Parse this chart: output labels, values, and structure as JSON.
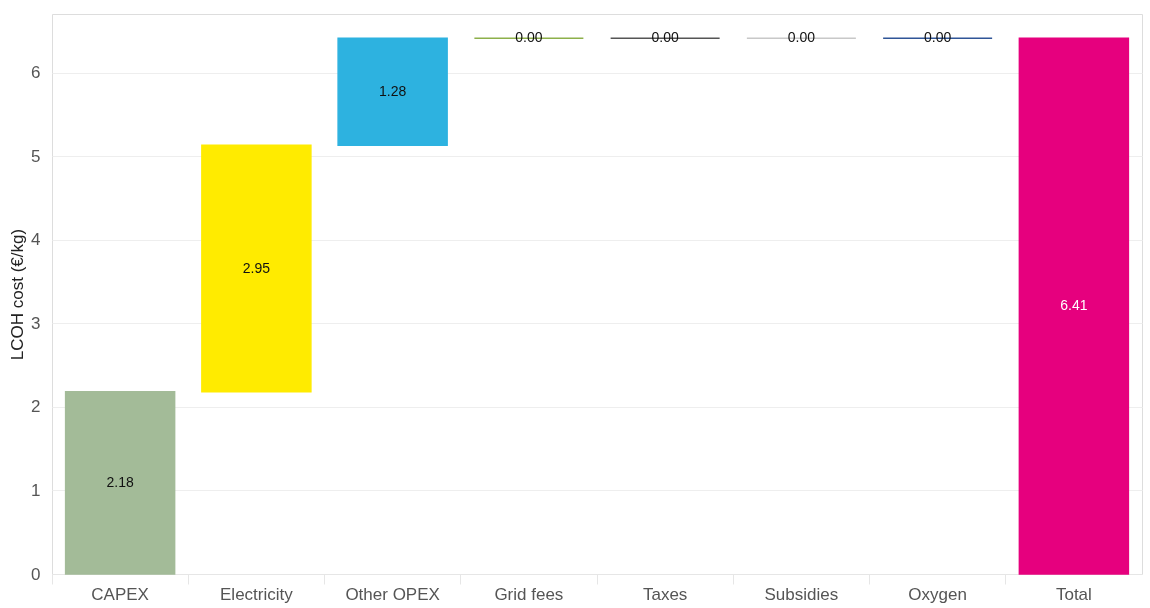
{
  "chart_data": {
    "type": "bar",
    "categories": [
      "CAPEX",
      "Electricity",
      "Other OPEX",
      "Grid fees",
      "Taxes",
      "Subsidies",
      "Oxygen",
      "Total"
    ],
    "values": [
      2.18,
      2.95,
      1.28,
      0.0,
      0.0,
      0.0,
      0.0,
      6.41
    ],
    "base": [
      0,
      2.18,
      5.13,
      6.41,
      6.41,
      6.41,
      6.41,
      0
    ],
    "colors": [
      "#a3bb98",
      "#ffeb00",
      "#2db2e0",
      "#8db04a",
      "#555555",
      "#c8c8c8",
      "#2f5597",
      "#e6007e"
    ],
    "value_labels": [
      "2.18",
      "2.95",
      "1.28",
      "0.00",
      "0.00",
      "0.00",
      "0.00",
      "6.41"
    ],
    "ylabel": "LCOH cost (€/kg)",
    "ylim": [
      0,
      6.7
    ],
    "yticks": [
      0,
      1,
      2,
      3,
      4,
      5,
      6
    ],
    "grid": "y"
  }
}
